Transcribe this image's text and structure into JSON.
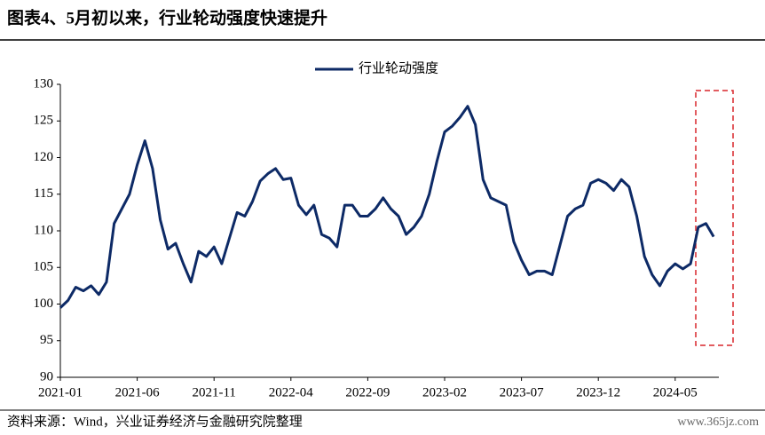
{
  "chart_data": {
    "type": "line",
    "title": "图表4、5月初以来，行业轮动强度快速提升",
    "source": "资料来源：Wind，兴业证券经济与金融研究院整理",
    "watermark": "www.365jz.com",
    "categories": [
      "2021-01",
      null,
      null,
      null,
      null,
      null,
      null,
      null,
      null,
      null,
      "2021-06",
      null,
      null,
      null,
      null,
      null,
      null,
      null,
      null,
      null,
      "2021-11",
      null,
      null,
      null,
      null,
      null,
      null,
      null,
      null,
      null,
      "2022-04",
      null,
      null,
      null,
      null,
      null,
      null,
      null,
      null,
      null,
      "2022-09",
      null,
      null,
      null,
      null,
      null,
      null,
      null,
      null,
      null,
      "2023-02",
      null,
      null,
      null,
      null,
      null,
      null,
      null,
      null,
      null,
      "2023-07",
      null,
      null,
      null,
      null,
      null,
      null,
      null,
      null,
      null,
      "2023-12",
      null,
      null,
      null,
      null,
      null,
      null,
      null,
      null,
      null,
      "2024-05",
      null,
      null,
      null,
      null,
      null
    ],
    "series": [
      {
        "name": "行业轮动强度",
        "color": "#0d2a66",
        "values": [
          99.5,
          100.5,
          102.3,
          101.8,
          102.5,
          101.3,
          103,
          111,
          113,
          115,
          119,
          122.3,
          118.5,
          111.5,
          107.5,
          108.3,
          105.5,
          103,
          107.2,
          106.5,
          107.8,
          105.5,
          109,
          112.5,
          112,
          114,
          116.8,
          117.8,
          118.5,
          117,
          117.2,
          113.5,
          112.2,
          113.5,
          109.5,
          109,
          107.8,
          113.5,
          113.5,
          112,
          112,
          113,
          114.5,
          113,
          112,
          109.5,
          110.5,
          112,
          115,
          119.5,
          123.5,
          124.3,
          125.5,
          127,
          124.5,
          117,
          114.5,
          114,
          113.5,
          108.5,
          106,
          104,
          104.5,
          104.5,
          104,
          108,
          112,
          113,
          113.5,
          116.5,
          117,
          116.5,
          115.5,
          117,
          116,
          112,
          106.5,
          104,
          102.5,
          104.5,
          105.5,
          104.8,
          105.5,
          110.5,
          111,
          109.2
        ]
      }
    ],
    "ylim": [
      90,
      130
    ],
    "yticks": [
      90,
      95,
      100,
      105,
      110,
      115,
      120,
      125,
      130
    ],
    "legend": "top",
    "highlight_color": "#d9262c"
  }
}
